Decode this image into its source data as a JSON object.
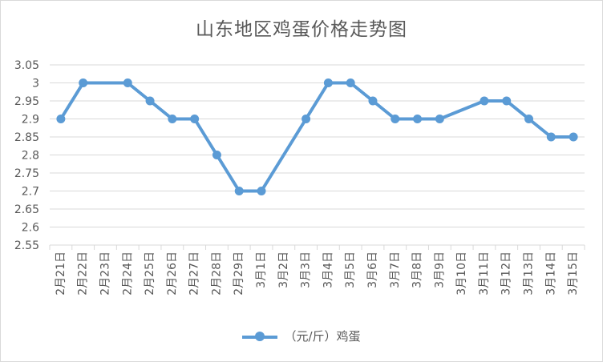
{
  "chart_data": {
    "type": "line",
    "title": "山东地区鸡蛋价格走势图",
    "categories": [
      "2月21日",
      "2月22日",
      "2月23日",
      "2月24日",
      "2月25日",
      "2月26日",
      "2月27日",
      "2月28日",
      "2月29日",
      "3月1日",
      "3月2日",
      "3月3日",
      "3月4日",
      "3月5日",
      "3月6日",
      "3月7日",
      "3月8日",
      "3月9日",
      "3月10日",
      "3月11日",
      "3月12日",
      "3月13日",
      "3月14日",
      "3月15日"
    ],
    "series": [
      {
        "name": "（元/斤）鸡蛋",
        "color": "#5b9bd5",
        "values": [
          2.9,
          3.0,
          null,
          3.0,
          2.95,
          2.9,
          2.9,
          2.8,
          2.7,
          2.7,
          null,
          2.9,
          3.0,
          3.0,
          2.95,
          2.9,
          2.9,
          2.9,
          null,
          2.95,
          2.95,
          2.9,
          2.85,
          2.85
        ]
      }
    ],
    "ylim": [
      2.55,
      3.05
    ],
    "yticks": [
      "3.05",
      "3",
      "2.95",
      "2.9",
      "2.85",
      "2.8",
      "2.75",
      "2.7",
      "2.65",
      "2.6",
      "2.55"
    ],
    "grid": true,
    "legend_position": "bottom"
  }
}
